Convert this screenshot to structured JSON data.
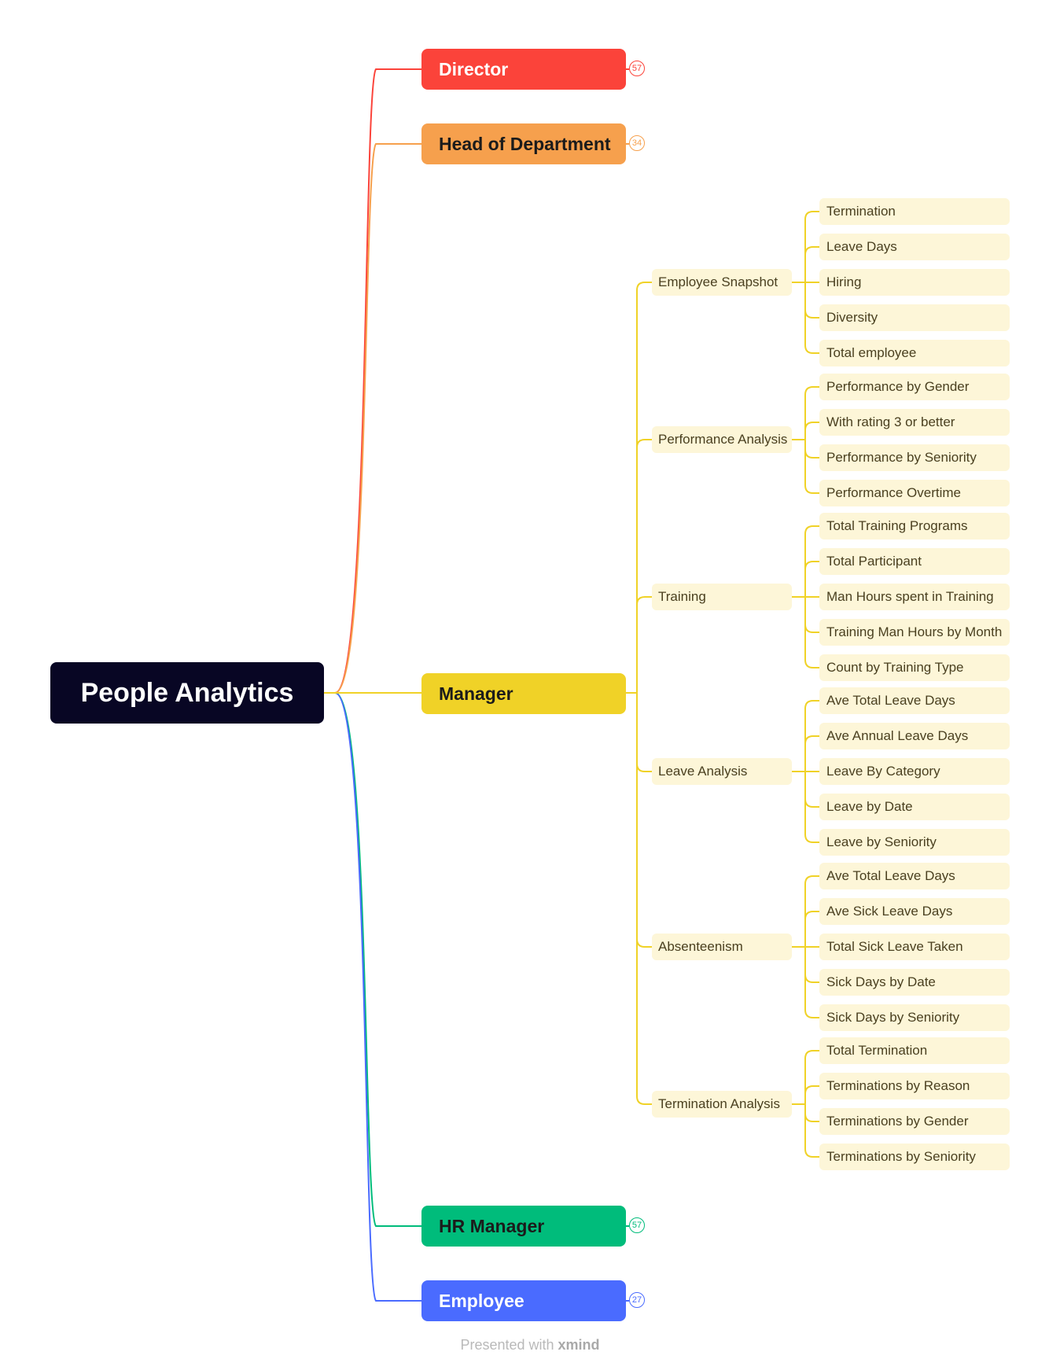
{
  "root": {
    "label": "People Analytics"
  },
  "branches": {
    "director": {
      "label": "Director",
      "badge": "57",
      "color": "#fb433a"
    },
    "head_of_department": {
      "label": "Head of Department",
      "badge": "34",
      "color": "#f6a04d"
    },
    "manager": {
      "label": "Manager",
      "color": "#f0d227"
    },
    "hr_manager": {
      "label": "HR Manager",
      "badge": "57",
      "color": "#00bc7b"
    },
    "employee": {
      "label": "Employee",
      "badge": "27",
      "color": "#4a6bff"
    }
  },
  "manager_topics": [
    {
      "label": "Employee Snapshot",
      "items": [
        "Termination",
        "Leave Days",
        "Hiring",
        "Diversity",
        "Total employee"
      ]
    },
    {
      "label": "Performance Analysis",
      "items": [
        "Performance by Gender",
        "With rating 3 or better",
        "Performance by Seniority",
        "Performance Overtime"
      ]
    },
    {
      "label": "Training",
      "items": [
        "Total Training Programs",
        "Total Participant",
        "Man Hours spent in Training",
        "Training Man Hours by Month",
        "Count by Training Type"
      ]
    },
    {
      "label": "Leave Analysis",
      "items": [
        "Ave Total Leave Days",
        "Ave Annual Leave Days",
        "Leave By Category",
        "Leave by Date",
        "Leave by Seniority"
      ]
    },
    {
      "label": "Absenteenism",
      "items": [
        "Ave Total Leave Days",
        "Ave Sick Leave Days",
        "Total Sick Leave Taken",
        "Sick Days by Date",
        "Sick Days by Seniority"
      ]
    },
    {
      "label": "Termination Analysis",
      "items": [
        "Total Termination",
        "Terminations by Reason",
        "Terminations by Gender",
        "Terminations by Seniority"
      ]
    }
  ],
  "footer": {
    "prefix": "Presented with",
    "brand": "xmind"
  }
}
